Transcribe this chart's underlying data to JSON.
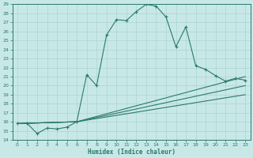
{
  "title": "",
  "xlabel": "Humidex (Indice chaleur)",
  "ylabel": "",
  "bg_color": "#c8e8e8",
  "line_color": "#2a7a6a",
  "grid_color": "#aad4d0",
  "xlim": [
    -0.5,
    23.5
  ],
  "ylim": [
    14,
    29
  ],
  "yticks": [
    14,
    15,
    16,
    17,
    18,
    19,
    20,
    21,
    22,
    23,
    24,
    25,
    26,
    27,
    28,
    29
  ],
  "xticks": [
    0,
    1,
    2,
    3,
    4,
    5,
    6,
    7,
    8,
    9,
    10,
    11,
    12,
    13,
    14,
    15,
    16,
    17,
    18,
    19,
    20,
    21,
    22,
    23
  ],
  "main_x": [
    0,
    1,
    2,
    3,
    4,
    5,
    6,
    7,
    8,
    9,
    10,
    11,
    12,
    13,
    14,
    15,
    16,
    17,
    18,
    19,
    20,
    21,
    22,
    23
  ],
  "main_y": [
    15.8,
    15.8,
    14.7,
    15.3,
    15.2,
    15.4,
    16.0,
    21.2,
    20.0,
    25.6,
    27.3,
    27.2,
    28.2,
    29.0,
    28.8,
    27.6,
    24.3,
    26.5,
    22.2,
    21.8,
    21.1,
    20.5,
    20.8,
    20.6
  ],
  "fan_lines": [
    {
      "x": [
        0,
        6,
        23
      ],
      "y": [
        15.8,
        16.0,
        21.0
      ]
    },
    {
      "x": [
        0,
        6,
        23
      ],
      "y": [
        15.8,
        16.0,
        20.0
      ]
    },
    {
      "x": [
        0,
        6,
        23
      ],
      "y": [
        15.8,
        16.0,
        19.0
      ]
    }
  ]
}
